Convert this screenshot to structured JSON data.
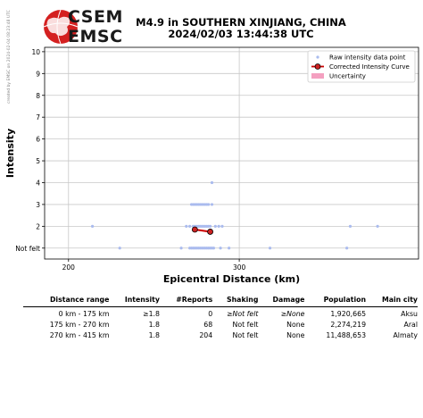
{
  "watermark": "created by EMSC on 2024-02-04 08:23:48 UTC",
  "logo": {
    "line1": "CSEM",
    "line2": "EMSC"
  },
  "header": {
    "title_line1": "M4.9 in SOUTHERN XINJIANG, CHINA",
    "title_line2": "2024/02/03 13:44:38 UTC"
  },
  "chart_data": {
    "type": "scatter",
    "xlabel": "Epicentral Distance (km)",
    "ylabel": "Intensity",
    "xlim": [
      186,
      405
    ],
    "ylim": [
      0.5,
      10.2
    ],
    "x_ticks": [
      200,
      300
    ],
    "y_ticks": [
      {
        "value": 1,
        "label": "Not felt"
      },
      {
        "value": 2,
        "label": "2"
      },
      {
        "value": 3,
        "label": "3"
      },
      {
        "value": 4,
        "label": "4"
      },
      {
        "value": 5,
        "label": "5"
      },
      {
        "value": 6,
        "label": "6"
      },
      {
        "value": 7,
        "label": "7"
      },
      {
        "value": 8,
        "label": "8"
      },
      {
        "value": 9,
        "label": "9"
      },
      {
        "value": 10,
        "label": "10"
      }
    ],
    "grid": true,
    "legend_position": "top-right",
    "legend": [
      {
        "label": "Raw intensity data point",
        "color": "#aabbee"
      },
      {
        "label": "Corrected Intensity Curve",
        "color": "#cc0000"
      },
      {
        "label": "Uncertainty",
        "color": "#f4a0c0"
      }
    ],
    "series": [
      {
        "name": "Raw intensity data point",
        "points": [
          [
            230,
            1
          ],
          [
            266,
            1
          ],
          [
            271,
            1
          ],
          [
            272,
            1
          ],
          [
            273,
            1
          ],
          [
            274,
            1
          ],
          [
            275,
            1
          ],
          [
            276,
            1
          ],
          [
            277,
            1
          ],
          [
            278,
            1
          ],
          [
            279,
            1
          ],
          [
            280,
            1
          ],
          [
            281,
            1
          ],
          [
            282,
            1
          ],
          [
            283,
            1
          ],
          [
            284,
            1
          ],
          [
            285,
            1
          ],
          [
            289,
            1
          ],
          [
            294,
            1
          ],
          [
            318,
            1
          ],
          [
            363,
            1
          ],
          [
            214,
            2
          ],
          [
            269,
            2
          ],
          [
            271,
            2
          ],
          [
            273,
            2
          ],
          [
            274,
            2
          ],
          [
            275,
            2
          ],
          [
            276,
            2
          ],
          [
            277,
            2
          ],
          [
            278,
            2
          ],
          [
            279,
            2
          ],
          [
            280,
            2
          ],
          [
            281,
            2
          ],
          [
            282,
            2
          ],
          [
            283,
            2
          ],
          [
            286,
            2
          ],
          [
            288,
            2
          ],
          [
            290,
            2
          ],
          [
            365,
            2
          ],
          [
            381,
            2
          ],
          [
            272,
            3
          ],
          [
            273,
            3
          ],
          [
            274,
            3
          ],
          [
            275,
            3
          ],
          [
            276,
            3
          ],
          [
            277,
            3
          ],
          [
            278,
            3
          ],
          [
            279,
            3
          ],
          [
            280,
            3
          ],
          [
            281,
            3
          ],
          [
            282,
            3
          ],
          [
            284,
            3
          ],
          [
            284,
            4
          ]
        ]
      },
      {
        "name": "Corrected Intensity Curve",
        "points": [
          [
            274,
            1.85
          ],
          [
            283,
            1.75
          ]
        ]
      }
    ]
  },
  "table": {
    "headers": [
      "Distance range",
      "Intensity",
      "#Reports",
      "Shaking",
      "Damage",
      "Population",
      "Main city"
    ],
    "rows": [
      [
        "0 km -  175 km",
        "≥1.8",
        "0",
        "≥Not felt",
        "≥None",
        "1,920,665",
        "Aksu"
      ],
      [
        "175 km -  270 km",
        "1.8",
        "68",
        "Not felt",
        "None",
        "2,274,219",
        "Aral"
      ],
      [
        "270 km -  415 km",
        "1.8",
        "204",
        "Not felt",
        "None",
        "11,488,653",
        "Almaty"
      ]
    ]
  }
}
